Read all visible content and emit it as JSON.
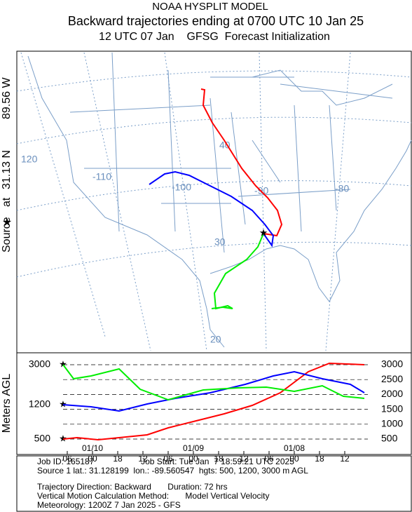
{
  "header": {
    "title": "NOAA HYSPLIT MODEL",
    "subtitle": "Backward trajectories ending at 0700 UTC 10 Jan 25",
    "line3": "12 UTC 07 Jan    GFSG  Forecast Initialization"
  },
  "side_label": {
    "source": "Source",
    "at": "at",
    "lat": "31.13 N",
    "lon": "89.56 W"
  },
  "map_labels": [
    "120",
    "-110",
    "-100",
    "40",
    "-90",
    "-80",
    "30",
    "20"
  ],
  "height_panel": {
    "axis_label": "Meters AGL",
    "source_heights": [
      "3000",
      "1200",
      "500"
    ],
    "right_ticks": [
      "3000",
      "2500",
      "2000",
      "1500",
      "1000",
      "500"
    ],
    "time_ticks": [
      "06",
      "00",
      "18",
      "12",
      "06",
      "00",
      "18",
      "12",
      "06",
      "00",
      "18",
      "12"
    ],
    "dates": [
      "01/10",
      "01/09",
      "01/08"
    ]
  },
  "info": [
    "Job ID: 165187                    Job Start: Tue Jan  7 18:59:21 UTC 2025",
    "Source 1 lat.: 31.128199  lon.: -89.560547  hgts: 500, 1200, 3000 m AGL",
    "Trajectory Direction: Backward       Duration: 72 hrs",
    "Vertical Motion Calculation Method:       Model Vertical Velocity",
    "Meteorology: 1200Z 7 Jan 2025 - GFS"
  ]
}
